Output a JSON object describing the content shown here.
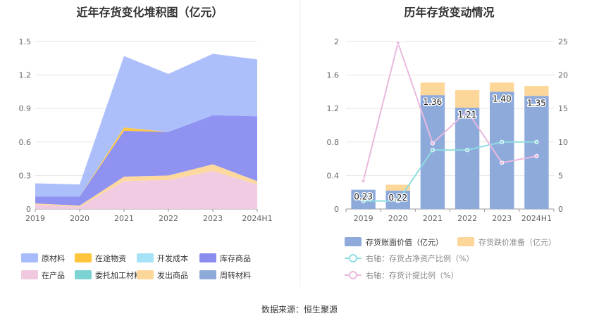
{
  "source_label": "数据来源：恒生聚源",
  "chart_data": [
    {
      "type": "area",
      "title": "近年存货变化堆积图（亿元）",
      "categories": [
        "2019",
        "2020",
        "2021",
        "2022",
        "2023",
        "2024H1"
      ],
      "ylim": [
        0,
        1.5
      ],
      "yticks": [
        "0",
        "0.3",
        "0.6",
        "0.9",
        "1.2",
        "1.5"
      ],
      "stacked": true,
      "grid": true,
      "legend_position": "bottom",
      "series": [
        {
          "name": "在产品",
          "color": "#f0c8e0",
          "values": [
            0.04,
            0.02,
            0.25,
            0.26,
            0.34,
            0.22
          ]
        },
        {
          "name": "委托加工材料",
          "color": "#7dd3d3",
          "values": [
            0.0,
            0.0,
            0.0,
            0.0,
            0.0,
            0.0
          ]
        },
        {
          "name": "发出商品",
          "color": "#fdd79a",
          "values": [
            0.01,
            0.01,
            0.04,
            0.04,
            0.06,
            0.03
          ]
        },
        {
          "name": "周转材料",
          "color": "#8eaadb",
          "values": [
            0.0,
            0.0,
            0.0,
            0.0,
            0.0,
            0.0
          ]
        },
        {
          "name": "库存商品",
          "color": "#8a8cf0",
          "values": [
            0.06,
            0.08,
            0.41,
            0.39,
            0.44,
            0.58
          ]
        },
        {
          "name": "在途物资",
          "color": "#ffc53d",
          "values": [
            0.0,
            0.0,
            0.03,
            0.0,
            0.0,
            0.0
          ]
        },
        {
          "name": "开发成本",
          "color": "#a6e2f6",
          "values": [
            0.0,
            0.0,
            0.0,
            0.0,
            0.0,
            0.0
          ]
        },
        {
          "name": "原材料",
          "color": "#a8bcfb",
          "values": [
            0.12,
            0.11,
            0.64,
            0.52,
            0.55,
            0.51
          ]
        }
      ],
      "legend": [
        "原材料",
        "在途物资",
        "开发成本",
        "库存商品",
        "在产品",
        "委托加工材料",
        "发出商品",
        "周转材料"
      ]
    },
    {
      "type": "bar",
      "title": "历年存货变动情况",
      "categories": [
        "2019",
        "2020",
        "2021",
        "2022",
        "2023",
        "2024H1"
      ],
      "ylim_left": [
        0,
        2
      ],
      "yticks_left": [
        "0",
        "0.4",
        "0.8",
        "1.2",
        "1.6",
        "2"
      ],
      "ylim_right": [
        0,
        25
      ],
      "yticks_right": [
        "0",
        "5",
        "10",
        "15",
        "20",
        "25"
      ],
      "grid": true,
      "legend_position": "bottom",
      "bar_series": [
        {
          "name": "存货账面价值（亿元）",
          "color": "#8eaadb",
          "values": [
            0.23,
            0.22,
            1.36,
            1.21,
            1.4,
            1.35
          ],
          "labels": [
            "0.23",
            "0.22",
            "1.36",
            "1.21",
            "1.40",
            "1.35"
          ]
        },
        {
          "name": "存货跌价准备（亿元）",
          "color": "#fdd79a",
          "values": [
            0.0,
            0.07,
            0.15,
            0.21,
            0.11,
            0.12
          ]
        }
      ],
      "line_series": [
        {
          "name": "右轴：存货占净资产比例（%）",
          "color": "#8fdde0",
          "values": [
            1.2,
            1.2,
            8.8,
            8.8,
            10.0,
            10.0
          ]
        },
        {
          "name": "右轴：存货计提比例（%）",
          "color": "#e9b9df",
          "values": [
            4.2,
            24.8,
            9.8,
            14.6,
            6.9,
            7.9
          ]
        }
      ]
    }
  ]
}
